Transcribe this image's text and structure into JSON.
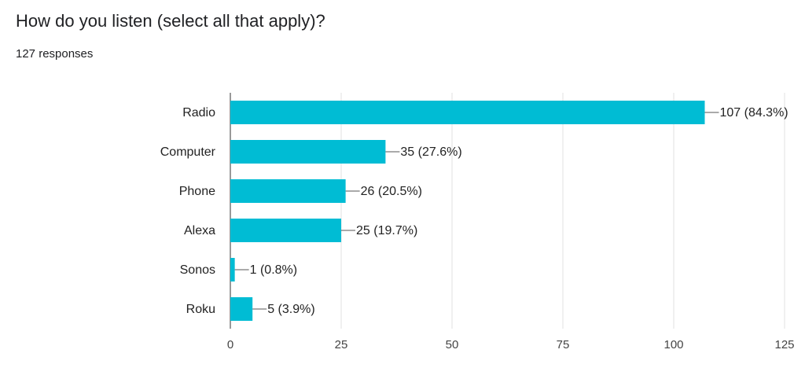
{
  "header": {
    "title": "How do you listen (select all that apply)?",
    "responses": "127 responses"
  },
  "chart_data": {
    "type": "bar",
    "orientation": "horizontal",
    "categories": [
      "Radio",
      "Computer",
      "Phone",
      "Alexa",
      "Sonos",
      "Roku"
    ],
    "values": [
      107,
      35,
      26,
      25,
      1,
      5
    ],
    "data_labels": [
      "107 (84.3%)",
      "35 (27.6%)",
      "26 (20.5%)",
      "25 (19.7%)",
      "1 (0.8%)",
      "5 (3.9%)"
    ],
    "xlim": [
      0,
      125
    ],
    "xticks": [
      0,
      25,
      50,
      75,
      100,
      125
    ],
    "grid": true,
    "legend": "none",
    "bar_color": "#00bcd4"
  }
}
